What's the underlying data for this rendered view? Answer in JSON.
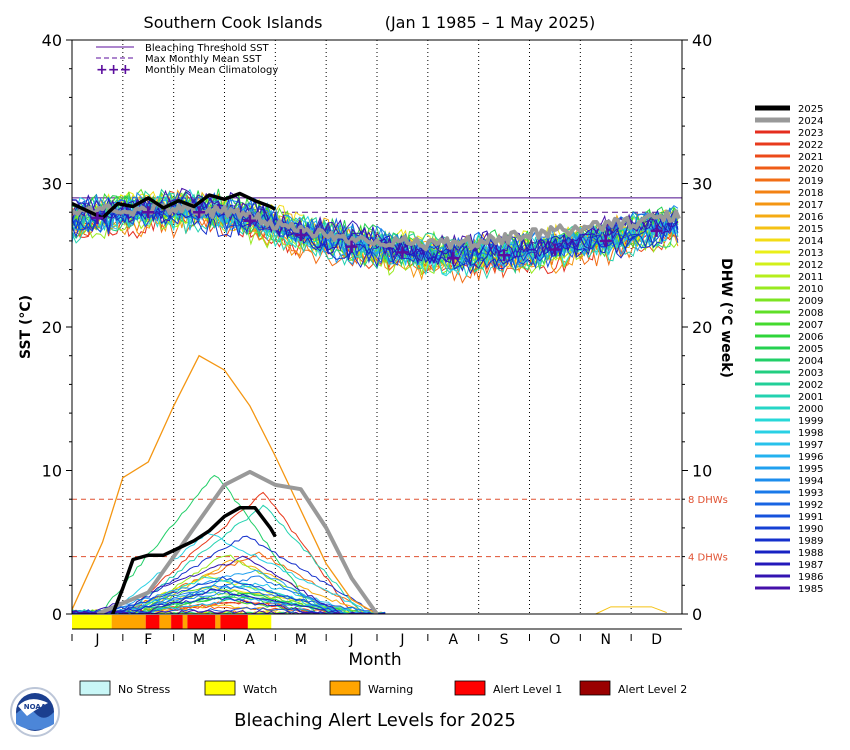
{
  "chart_data": {
    "type": "line",
    "title": "Southern Cook Islands",
    "period": "(Jan 1 1985 – 1 May 2025)",
    "xlabel": "Month",
    "ylabel_left": "SST (°C)",
    "ylabel_right": "DHW (°C week)",
    "ylim": [
      0,
      40
    ],
    "yticks": [
      0,
      10,
      20,
      30,
      40
    ],
    "month_labels": [
      "J",
      "F",
      "M",
      "A",
      "M",
      "J",
      "J",
      "A",
      "S",
      "O",
      "N",
      "D"
    ],
    "grid": "dotted vertical lines at month boundaries",
    "legend_placement": "top-left inside plot; year legend right of plot",
    "top_legend": [
      {
        "label": "Bleaching Threshold SST",
        "style": "solid",
        "color": "#5b0e9e"
      },
      {
        "label": "Max Monthly Mean SST",
        "style": "dashed",
        "color": "#5b0e9e"
      },
      {
        "label": "Monthly Mean Climatology",
        "style": "plus",
        "marker": "+++",
        "color": "#5b0e9e"
      }
    ],
    "bleaching_threshold_sst": 29.0,
    "max_monthly_mean_sst": 28.0,
    "climatology": {
      "months": [
        1,
        2,
        3,
        4,
        5,
        6,
        7,
        8,
        9,
        10,
        11,
        12
      ],
      "values": [
        27.6,
        28.0,
        28.0,
        27.4,
        26.4,
        25.6,
        25.2,
        24.8,
        25.0,
        25.4,
        26.0,
        26.7
      ]
    },
    "dhw_reference_lines": [
      {
        "value": 8,
        "label": "8 DHWs",
        "color": "#e05030"
      },
      {
        "value": 4,
        "label": "4 DHWs",
        "color": "#e05030"
      }
    ],
    "series": [
      {
        "name": "2025",
        "color": "#000000",
        "highlight": true,
        "sst": {
          "x": [
            0.0,
            0.3,
            0.6,
            0.9,
            1.2,
            1.5,
            1.8,
            2.1,
            2.4,
            2.7,
            3.0,
            3.3,
            3.6,
            3.9,
            4.0
          ],
          "y": [
            28.6,
            28.1,
            27.6,
            28.6,
            28.4,
            29.0,
            28.3,
            28.8,
            28.4,
            29.2,
            28.9,
            29.3,
            28.8,
            28.4,
            28.2
          ]
        },
        "dhw": {
          "x": [
            0.8,
            1.0,
            1.2,
            1.5,
            1.8,
            2.1,
            2.4,
            2.7,
            3.0,
            3.3,
            3.6,
            3.9,
            4.0
          ],
          "y": [
            0.0,
            1.8,
            3.8,
            4.1,
            4.1,
            4.6,
            5.1,
            5.8,
            6.8,
            7.4,
            7.4,
            6.0,
            5.4
          ]
        }
      },
      {
        "name": "2024",
        "color": "#999999",
        "highlight": true,
        "sst": {
          "x": [
            0,
            1,
            2,
            3,
            4,
            5,
            6,
            7,
            8,
            9,
            10,
            11,
            12
          ],
          "y": [
            28.0,
            28.2,
            28.3,
            28.0,
            27.2,
            26.4,
            26.0,
            25.8,
            25.9,
            26.4,
            26.9,
            27.3,
            27.8
          ]
        },
        "dhw": {
          "x": [
            0.5,
            1.5,
            2.3,
            3.0,
            3.5,
            4.0,
            4.5,
            5.0,
            5.5,
            6.0
          ],
          "y": [
            0.0,
            1.5,
            5.5,
            9.0,
            9.9,
            9.0,
            8.7,
            6.0,
            2.5,
            0.0
          ]
        }
      },
      {
        "name": "2023",
        "color": "#e52d1e"
      },
      {
        "name": "2022",
        "color": "#e83a1c"
      },
      {
        "name": "2021",
        "color": "#ec4a1a"
      },
      {
        "name": "2020",
        "color": "#ef5c17"
      },
      {
        "name": "2019",
        "color": "#f26e15"
      },
      {
        "name": "2018",
        "color": "#f38213"
      },
      {
        "name": "2017",
        "color": "#f49612",
        "dhw": {
          "x": [
            0.0,
            0.6,
            1.0,
            1.5,
            2.0,
            2.5,
            3.0,
            3.5,
            4.0,
            4.6,
            5.0,
            5.5,
            6.0
          ],
          "y": [
            0.3,
            5.0,
            9.5,
            10.6,
            14.5,
            18.0,
            17.0,
            14.5,
            11.0,
            6.5,
            3.5,
            1.0,
            0.0
          ]
        }
      },
      {
        "name": "2016",
        "color": "#f5ab13"
      },
      {
        "name": "2015",
        "color": "#f5c214"
      },
      {
        "name": "2014",
        "color": "#f3dc16"
      },
      {
        "name": "2013",
        "color": "#eaef18"
      },
      {
        "name": "2012",
        "color": "#d2f019"
      },
      {
        "name": "2011",
        "color": "#b6ee1c"
      },
      {
        "name": "2010",
        "color": "#98ea1f"
      },
      {
        "name": "2009",
        "color": "#7ce423"
      },
      {
        "name": "2008",
        "color": "#5fdf27"
      },
      {
        "name": "2007",
        "color": "#44da2e"
      },
      {
        "name": "2006",
        "color": "#2fd53a"
      },
      {
        "name": "2005",
        "color": "#25d150"
      },
      {
        "name": "2004",
        "color": "#22cf68"
      },
      {
        "name": "2003",
        "color": "#22ce80"
      },
      {
        "name": "2002",
        "color": "#22cf98"
      },
      {
        "name": "2001",
        "color": "#24d2b0"
      },
      {
        "name": "2000",
        "color": "#26d6c6"
      },
      {
        "name": "1999",
        "color": "#28d8d8"
      },
      {
        "name": "1998",
        "color": "#29d0e4"
      },
      {
        "name": "1997",
        "color": "#27c2eb"
      },
      {
        "name": "1996",
        "color": "#24b2ef"
      },
      {
        "name": "1995",
        "color": "#20a0ef"
      },
      {
        "name": "1994",
        "color": "#1d8ded"
      },
      {
        "name": "1993",
        "color": "#1a79e9"
      },
      {
        "name": "1992",
        "color": "#1865e3"
      },
      {
        "name": "1991",
        "color": "#1652dc"
      },
      {
        "name": "1990",
        "color": "#1540d4"
      },
      {
        "name": "1989",
        "color": "#1530cc"
      },
      {
        "name": "1988",
        "color": "#1722c3"
      },
      {
        "name": "1987",
        "color": "#2418bb"
      },
      {
        "name": "1986",
        "color": "#3314b2"
      },
      {
        "name": "1985",
        "color": "#4510aa"
      }
    ],
    "alert_bar": {
      "segments": [
        {
          "from": 0.0,
          "to": 0.78,
          "level": "watch"
        },
        {
          "from": 0.78,
          "to": 1.45,
          "level": "warning"
        },
        {
          "from": 1.45,
          "to": 1.72,
          "level": "alert1"
        },
        {
          "from": 1.72,
          "to": 1.95,
          "level": "warning"
        },
        {
          "from": 1.95,
          "to": 2.18,
          "level": "alert1"
        },
        {
          "from": 2.18,
          "to": 2.27,
          "level": "warning"
        },
        {
          "from": 2.27,
          "to": 2.82,
          "level": "alert1"
        },
        {
          "from": 2.82,
          "to": 2.92,
          "level": "warning"
        },
        {
          "from": 2.92,
          "to": 3.46,
          "level": "alert1"
        },
        {
          "from": 3.46,
          "to": 3.92,
          "level": "watch"
        }
      ]
    },
    "alert_legend": [
      {
        "label": "No Stress",
        "color": "#c9f7f7"
      },
      {
        "label": "Watch",
        "color": "#ffff00"
      },
      {
        "label": "Warning",
        "color": "#ffa500"
      },
      {
        "label": "Alert Level 1",
        "color": "#ff0000"
      },
      {
        "label": "Alert Level 2",
        "color": "#9a0000"
      }
    ],
    "bottom_title": "Bleaching Alert Levels for 2025",
    "logo_text": "NOAA"
  }
}
